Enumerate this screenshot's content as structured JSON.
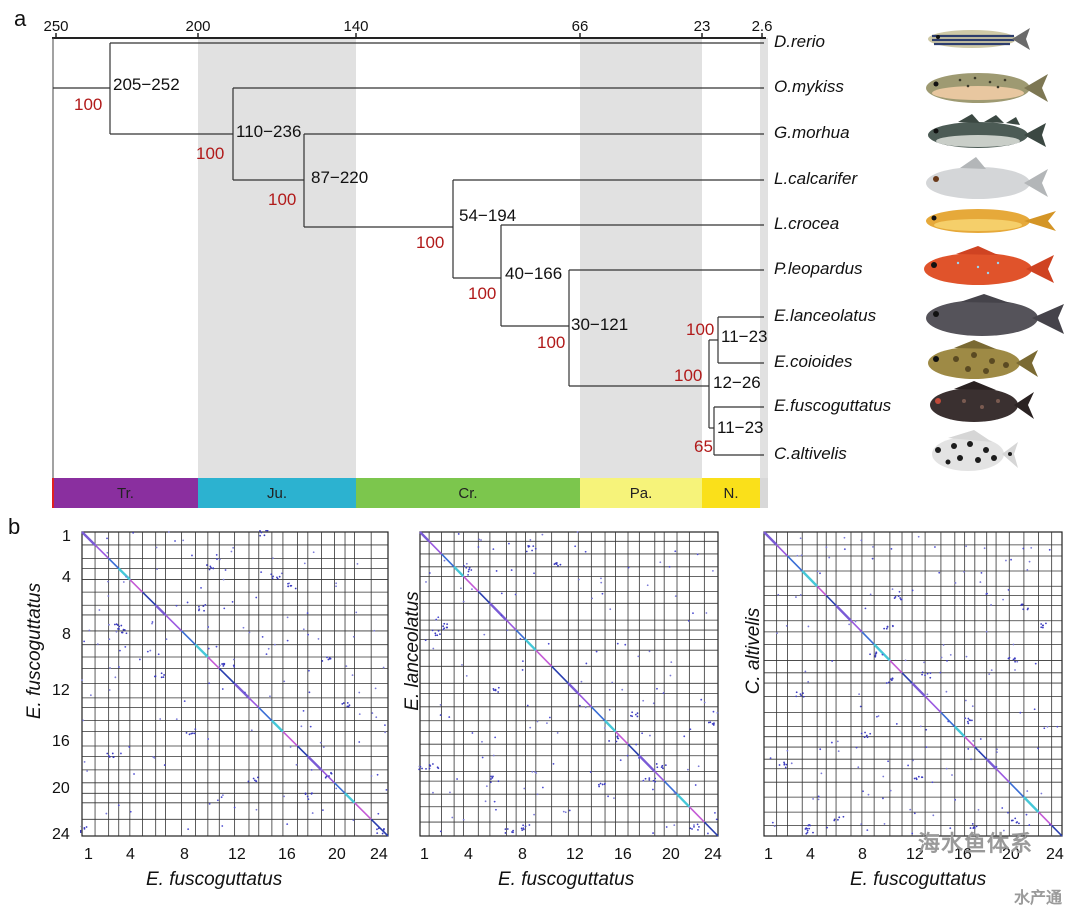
{
  "panel_labels": {
    "a": "a",
    "b": "b"
  },
  "timescale_ticks": [
    "250",
    "200",
    "140",
    "66",
    "23",
    "2.6"
  ],
  "eras": [
    "Tr.",
    "Ju.",
    "Cr.",
    "Pa.",
    "N."
  ],
  "taxa": [
    "D.rerio",
    "O.mykiss",
    "G.morhua",
    "L.calcarifer",
    "L.crocea",
    "P.leopardus",
    "E.lanceolatus",
    "E.coioides",
    "E.fuscoguttatus",
    "C.altivelis"
  ],
  "node_ages": [
    "205−252",
    "110−236",
    "87−220",
    "54−194",
    "40−166",
    "30−121",
    "11−23",
    "12−26",
    "11−23"
  ],
  "bootstrap": [
    "100",
    "100",
    "100",
    "100",
    "100",
    "100",
    "100",
    "100",
    "65"
  ],
  "colors": {
    "tr": "#8a2f9f",
    "ju": "#2cb2d0",
    "cr": "#7cc64d",
    "pa": "#f6f37a",
    "n": "#fae01a",
    "shade": "#e1e1e1",
    "bootstrap": "#b11a1a"
  },
  "dotplots": [
    {
      "ylabel": "E. fuscoguttatus",
      "xlabel": "E. fuscoguttatus"
    },
    {
      "ylabel": "E. lanceolatus",
      "xlabel": "E. fuscoguttatus"
    },
    {
      "ylabel": "C. altivelis",
      "xlabel": "E. fuscoguttatus"
    }
  ],
  "axis_y_ticks": [
    "1",
    "4",
    "8",
    "12",
    "16",
    "20",
    "24"
  ],
  "axis_x_ticks": [
    "1",
    "4",
    "8",
    "12",
    "16",
    "20",
    "24"
  ],
  "watermark": {
    "line1": "海水鱼体系",
    "line2": "水产通"
  }
}
